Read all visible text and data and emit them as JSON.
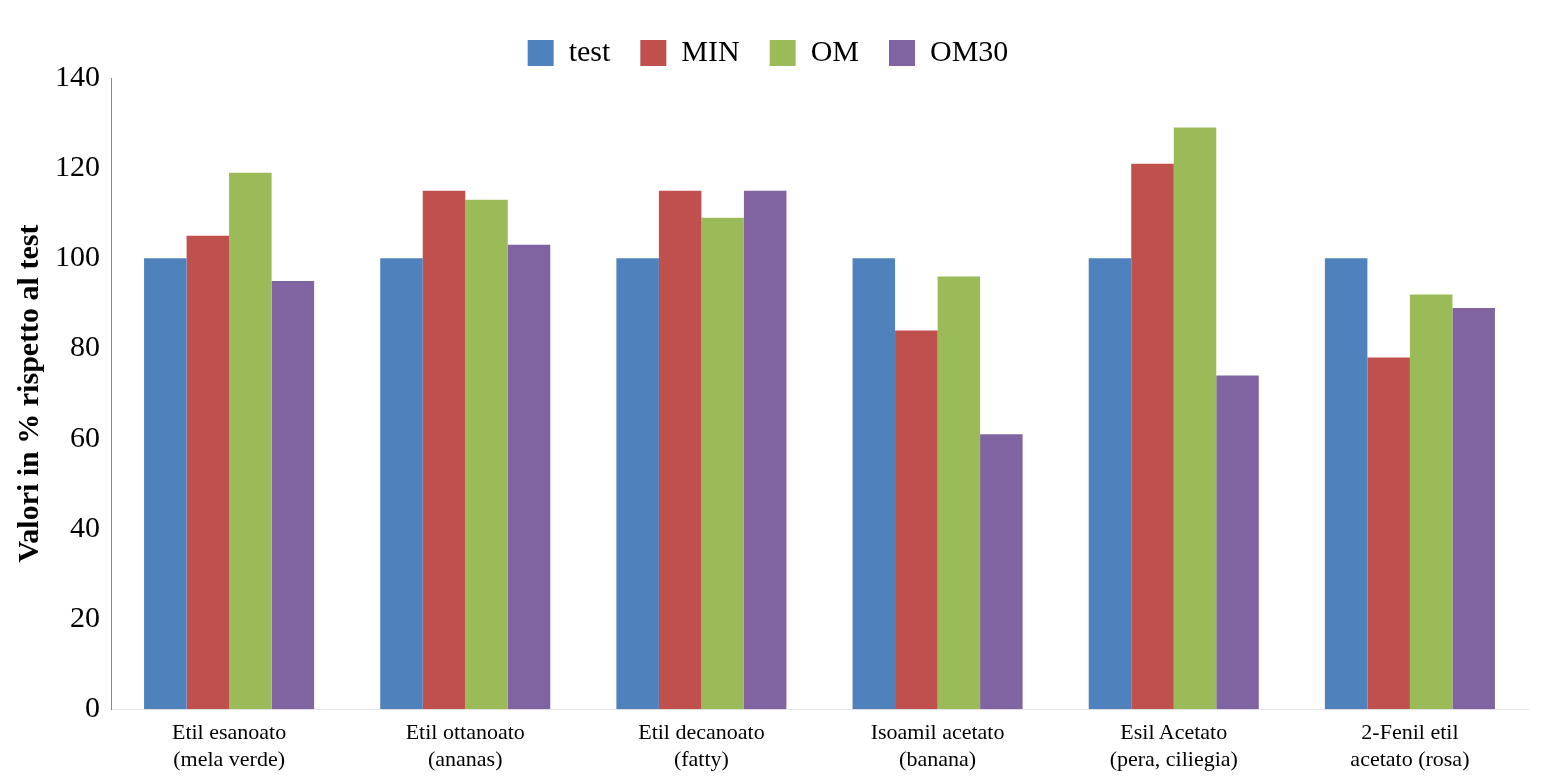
{
  "chart_data": {
    "type": "bar",
    "ylabel": "Valori in % rispetto al test",
    "categories": [
      "Etil esanoato\n(mela verde)",
      "Etil ottanoato\n(ananas)",
      "Etil decanoato\n(fatty)",
      "Isoamil acetato\n(banana)",
      "Esil Acetato\n(pera, ciliegia)",
      "2-Fenil etil\nacetato (rosa)"
    ],
    "series": [
      {
        "name": "test",
        "color": "#4f81bd",
        "values": [
          100,
          100,
          100,
          100,
          100,
          100
        ]
      },
      {
        "name": "MIN",
        "color": "#c0504d",
        "values": [
          105,
          115,
          115,
          84,
          121,
          78
        ]
      },
      {
        "name": "OM",
        "color": "#9bbb59",
        "values": [
          119,
          113,
          109,
          96,
          129,
          92
        ]
      },
      {
        "name": "OM30",
        "color": "#8064a2",
        "values": [
          95,
          103,
          115,
          61,
          74,
          89
        ]
      }
    ],
    "ylim": [
      0,
      140
    ],
    "yticks": [
      0,
      20,
      40,
      60,
      80,
      100,
      120,
      140
    ],
    "grid": false,
    "legend": "top"
  }
}
